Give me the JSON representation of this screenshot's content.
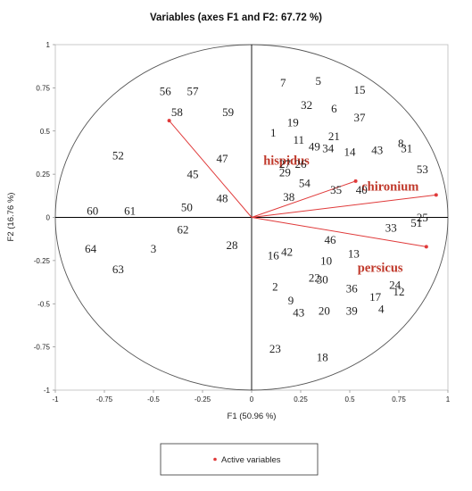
{
  "chart_data": {
    "type": "scatter",
    "title": "Variables (axes F1 and F2: 67.72 %)",
    "xlabel": "F1 (50.96 %)",
    "ylabel": "F2 (16.76 %)",
    "xlim": [
      -1,
      1
    ],
    "ylim": [
      -1,
      1
    ],
    "x_ticks": [
      "-1",
      "-0.75",
      "-0.5",
      "-0.25",
      "0",
      "0.25",
      "0.5",
      "0.75",
      "1"
    ],
    "y_ticks": [
      "1",
      "0.75",
      "0.5",
      "0.25",
      "0",
      "-0.25",
      "-0.5",
      "-0.75",
      "-1"
    ],
    "x_tick_values": [
      -1,
      -0.75,
      -0.5,
      -0.25,
      0,
      0.25,
      0.5,
      0.75,
      1
    ],
    "y_tick_values": [
      1,
      0.75,
      0.5,
      0.25,
      0,
      -0.25,
      -0.5,
      -0.75,
      -1
    ],
    "legend": {
      "label": "Active variables",
      "position": "bottom"
    },
    "variables": [
      {
        "name": "hispidus",
        "x": 0.53,
        "y": 0.21,
        "label_x": 0.06,
        "label_y": 0.33
      },
      {
        "name": "chironium",
        "x": 0.94,
        "y": 0.13,
        "label_x": 0.56,
        "label_y": 0.18
      },
      {
        "name": "persicus",
        "x": 0.89,
        "y": -0.17,
        "label_x": 0.54,
        "label_y": -0.29
      },
      {
        "name": "",
        "x": -0.42,
        "y": 0.56
      }
    ],
    "observations": [
      {
        "label": "7",
        "x": 0.16,
        "y": 0.78
      },
      {
        "label": "5",
        "x": 0.34,
        "y": 0.79
      },
      {
        "label": "15",
        "x": 0.55,
        "y": 0.74
      },
      {
        "label": "32",
        "x": 0.28,
        "y": 0.65
      },
      {
        "label": "6",
        "x": 0.42,
        "y": 0.63
      },
      {
        "label": "37",
        "x": 0.55,
        "y": 0.58
      },
      {
        "label": "19",
        "x": 0.21,
        "y": 0.55
      },
      {
        "label": "1",
        "x": 0.11,
        "y": 0.49
      },
      {
        "label": "11",
        "x": 0.24,
        "y": 0.45
      },
      {
        "label": "21",
        "x": 0.42,
        "y": 0.47
      },
      {
        "label": "49",
        "x": 0.32,
        "y": 0.41
      },
      {
        "label": "34",
        "x": 0.39,
        "y": 0.4
      },
      {
        "label": "14",
        "x": 0.5,
        "y": 0.38
      },
      {
        "label": "43",
        "x": 0.64,
        "y": 0.39
      },
      {
        "label": "8",
        "x": 0.76,
        "y": 0.43
      },
      {
        "label": "31",
        "x": 0.79,
        "y": 0.4
      },
      {
        "label": "27",
        "x": 0.17,
        "y": 0.31
      },
      {
        "label": "26",
        "x": 0.25,
        "y": 0.31
      },
      {
        "label": "29",
        "x": 0.17,
        "y": 0.26
      },
      {
        "label": "54",
        "x": 0.27,
        "y": 0.2
      },
      {
        "label": "53",
        "x": 0.87,
        "y": 0.28
      },
      {
        "label": "38",
        "x": 0.19,
        "y": 0.12
      },
      {
        "label": "35",
        "x": 0.43,
        "y": 0.16
      },
      {
        "label": "40",
        "x": 0.56,
        "y": 0.16
      },
      {
        "label": "33",
        "x": 0.71,
        "y": -0.06
      },
      {
        "label": "51",
        "x": 0.84,
        "y": -0.03
      },
      {
        "label": "25",
        "x": 0.87,
        "y": 0.0
      },
      {
        "label": "46",
        "x": 0.4,
        "y": -0.13
      },
      {
        "label": "13",
        "x": 0.52,
        "y": -0.21
      },
      {
        "label": "16",
        "x": 0.11,
        "y": -0.22
      },
      {
        "label": "42",
        "x": 0.18,
        "y": -0.2
      },
      {
        "label": "10",
        "x": 0.38,
        "y": -0.25
      },
      {
        "label": "22",
        "x": 0.32,
        "y": -0.35
      },
      {
        "label": "30",
        "x": 0.36,
        "y": -0.36
      },
      {
        "label": "2",
        "x": 0.12,
        "y": -0.4
      },
      {
        "label": "36",
        "x": 0.51,
        "y": -0.41
      },
      {
        "label": "24",
        "x": 0.73,
        "y": -0.39
      },
      {
        "label": "12",
        "x": 0.75,
        "y": -0.43
      },
      {
        "label": "17",
        "x": 0.63,
        "y": -0.46
      },
      {
        "label": "9",
        "x": 0.2,
        "y": -0.48
      },
      {
        "label": "43",
        "x": 0.24,
        "y": -0.55
      },
      {
        "label": "20",
        "x": 0.37,
        "y": -0.54
      },
      {
        "label": "39",
        "x": 0.51,
        "y": -0.54
      },
      {
        "label": "4",
        "x": 0.66,
        "y": -0.53
      },
      {
        "label": "23",
        "x": 0.12,
        "y": -0.76
      },
      {
        "label": "18",
        "x": 0.36,
        "y": -0.81
      },
      {
        "label": "56",
        "x": -0.44,
        "y": 0.73
      },
      {
        "label": "57",
        "x": -0.3,
        "y": 0.73
      },
      {
        "label": "58",
        "x": -0.38,
        "y": 0.61
      },
      {
        "label": "59",
        "x": -0.12,
        "y": 0.61
      },
      {
        "label": "52",
        "x": -0.68,
        "y": 0.36
      },
      {
        "label": "47",
        "x": -0.15,
        "y": 0.34
      },
      {
        "label": "45",
        "x": -0.3,
        "y": 0.25
      },
      {
        "label": "48",
        "x": -0.15,
        "y": 0.11
      },
      {
        "label": "50",
        "x": -0.33,
        "y": 0.06
      },
      {
        "label": "60",
        "x": -0.81,
        "y": 0.04
      },
      {
        "label": "61",
        "x": -0.62,
        "y": 0.04
      },
      {
        "label": "62",
        "x": -0.35,
        "y": -0.07
      },
      {
        "label": "28",
        "x": -0.1,
        "y": -0.16
      },
      {
        "label": "64",
        "x": -0.82,
        "y": -0.18
      },
      {
        "label": "3",
        "x": -0.5,
        "y": -0.18
      },
      {
        "label": "63",
        "x": -0.68,
        "y": -0.3
      }
    ],
    "colors": {
      "vector": "#e03a3a",
      "axis": "#000000",
      "circle": "#555555"
    }
  }
}
